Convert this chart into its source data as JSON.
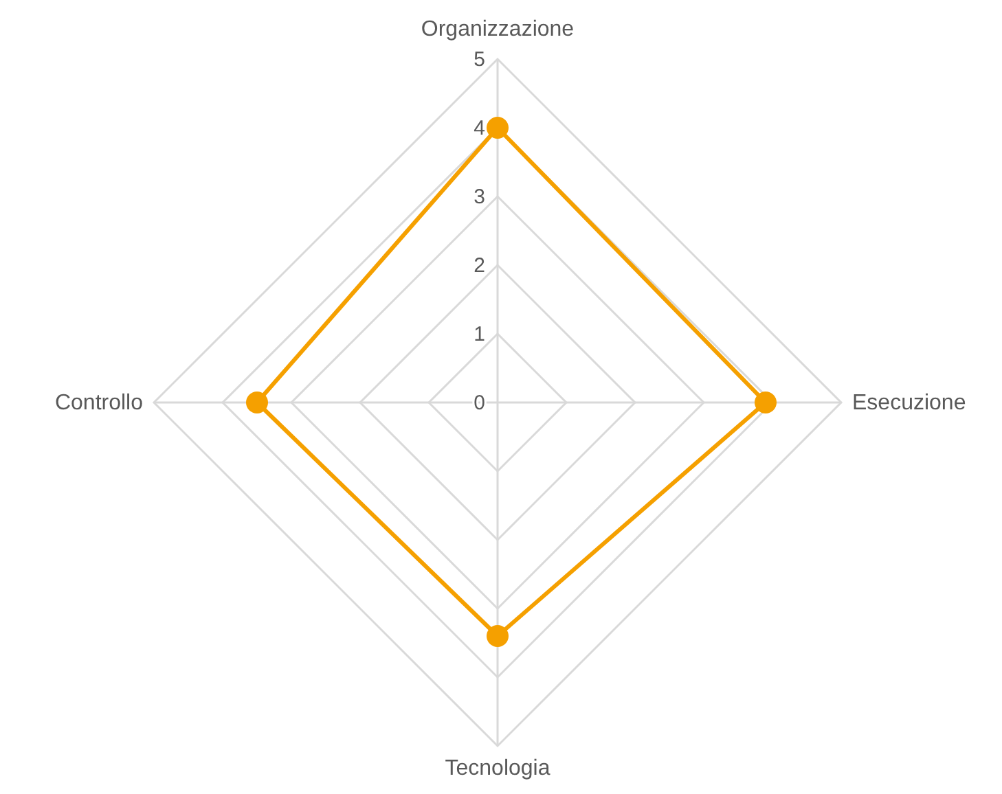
{
  "chart_data": {
    "type": "radar",
    "categories": [
      "Organizzazione",
      "Esecuzione",
      "Tecnologia",
      "Controllo"
    ],
    "series": [
      {
        "color": "#f5a000",
        "values": [
          4,
          3.9,
          3.4,
          3.5
        ]
      }
    ],
    "ylim": [
      0,
      5
    ],
    "yticks": [
      0,
      1,
      2,
      3,
      4,
      5
    ],
    "grid": true,
    "marker": "circle",
    "legend": false
  }
}
